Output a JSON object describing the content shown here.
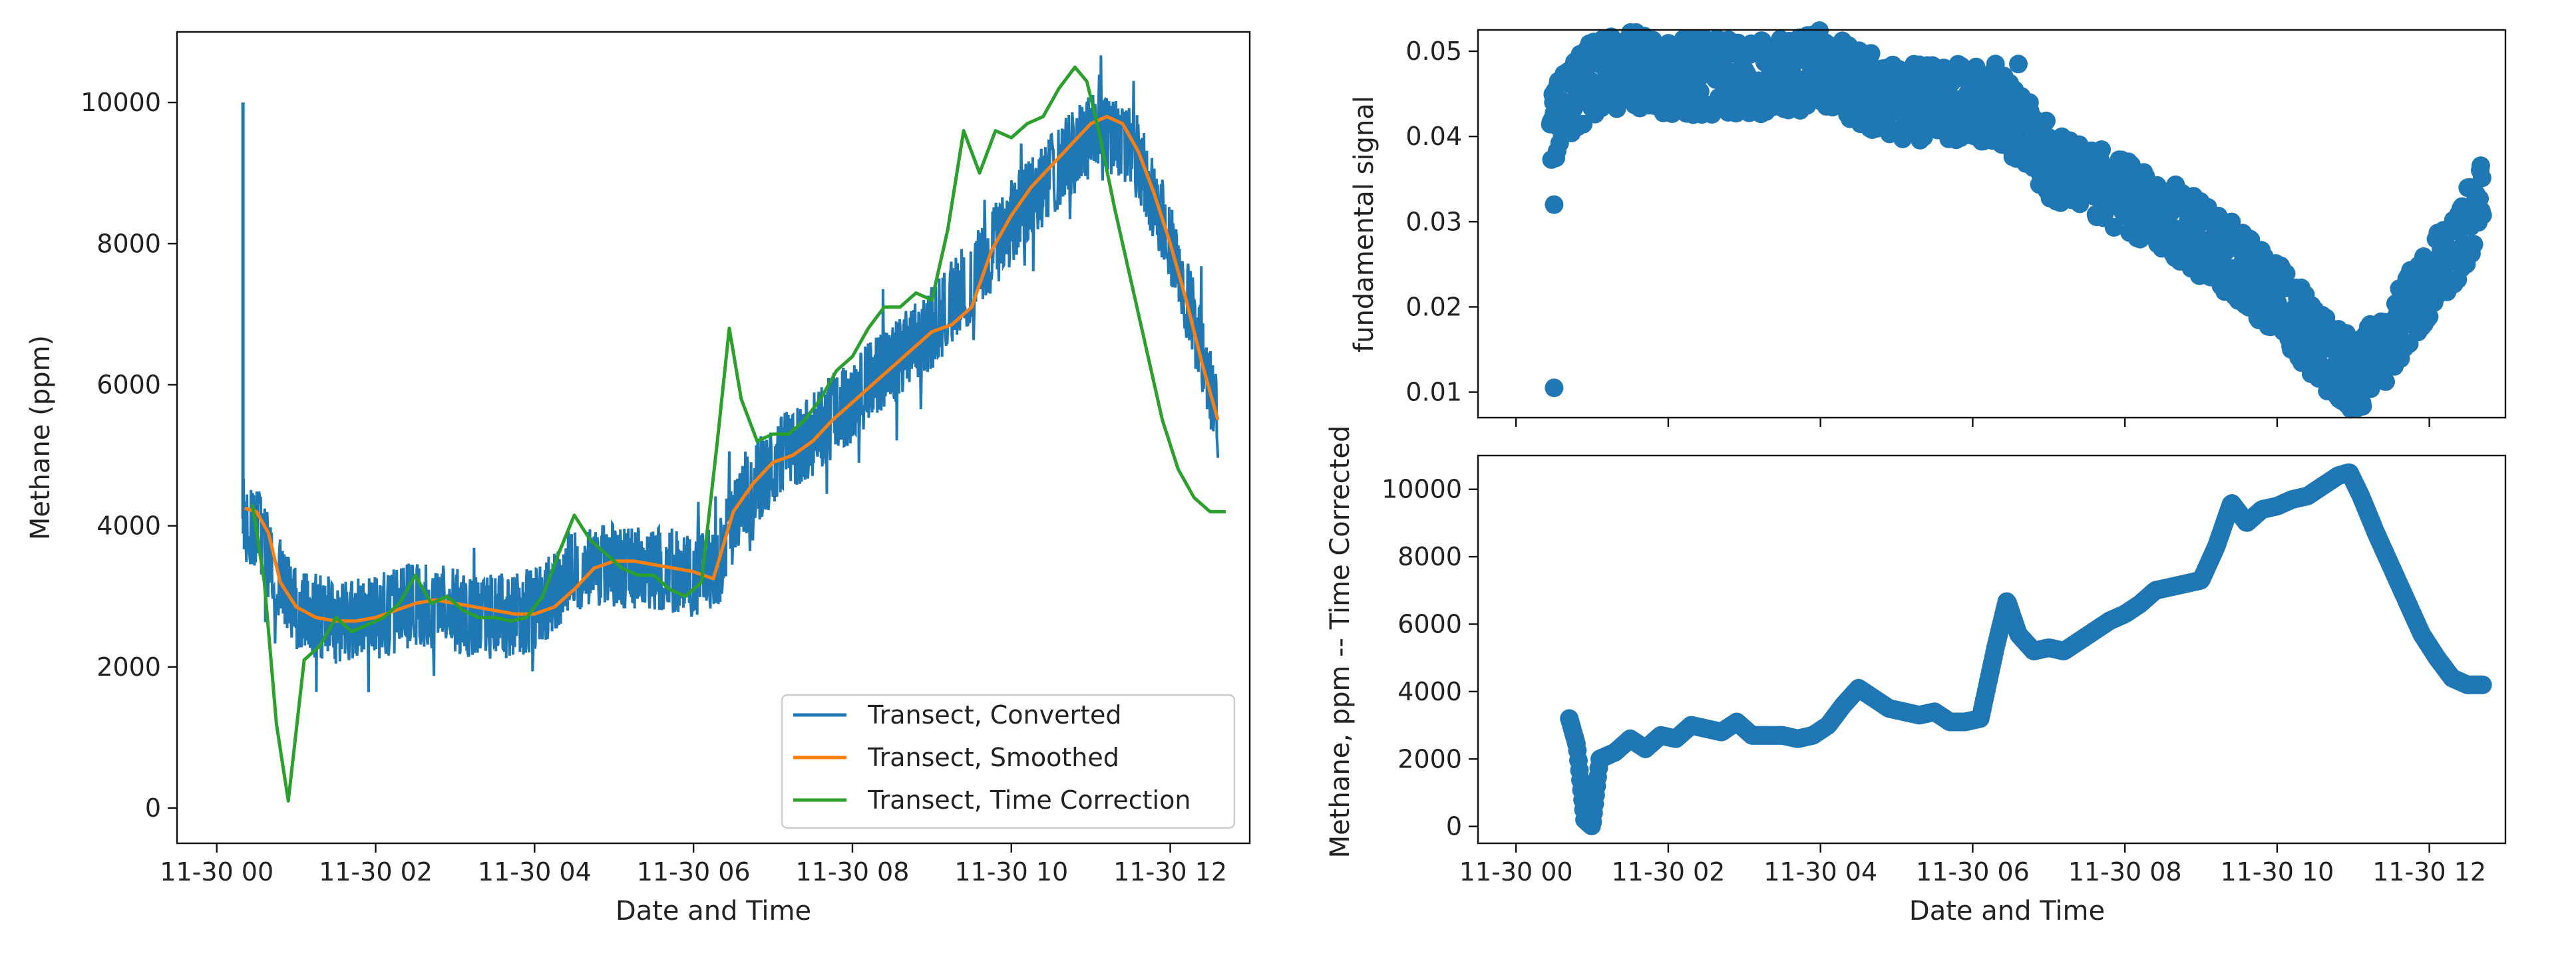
{
  "chart_data": [
    {
      "type": "line",
      "xlabel": "Date and Time",
      "ylabel": "Methane (ppm)",
      "xlim": [
        -0.5,
        13.0
      ],
      "ylim": [
        -500,
        11000
      ],
      "xticks": [
        0,
        2,
        4,
        6,
        8,
        10,
        12
      ],
      "xtick_labels": [
        "11-30 00",
        "11-30 02",
        "11-30 04",
        "11-30 06",
        "11-30 08",
        "11-30 10",
        "11-30 12"
      ],
      "yticks": [
        0,
        2000,
        4000,
        6000,
        8000,
        10000
      ],
      "ytick_labels": [
        "0",
        "2000",
        "4000",
        "6000",
        "8000",
        "10000"
      ],
      "legend": {
        "placement": "lower-right",
        "entries": [
          "Transect, Converted",
          "Transect, Smoothed",
          "Transect, Time Correction"
        ]
      },
      "series": [
        {
          "name": "Transect, Converted",
          "color": "#1f77b4",
          "band_noise": 450,
          "spike": {
            "x": 0.33,
            "y": 10000
          },
          "x": [
            0.33,
            0.5,
            0.75,
            1.0,
            1.5,
            2.0,
            2.5,
            3.0,
            3.5,
            4.0,
            4.5,
            5.0,
            5.5,
            6.0,
            6.3,
            6.6,
            7.0,
            7.5,
            8.0,
            8.5,
            9.0,
            9.5,
            10.0,
            10.5,
            11.0,
            11.3,
            11.6,
            12.0,
            12.4,
            12.6
          ],
          "y": [
            4100,
            4000,
            3300,
            2800,
            2650,
            2700,
            2900,
            2800,
            2700,
            2800,
            3400,
            3450,
            3400,
            3300,
            3400,
            4400,
            4900,
            5300,
            5800,
            6300,
            6800,
            7500,
            8300,
            9000,
            9500,
            9500,
            9200,
            8000,
            6500,
            5500
          ]
        },
        {
          "name": "Transect, Smoothed",
          "color": "#ff7f0e",
          "x": [
            0.35,
            0.5,
            0.65,
            0.8,
            1.0,
            1.25,
            1.5,
            1.75,
            2.0,
            2.25,
            2.5,
            2.75,
            3.0,
            3.25,
            3.5,
            3.75,
            4.0,
            4.25,
            4.5,
            4.75,
            5.0,
            5.25,
            5.5,
            5.75,
            6.0,
            6.25,
            6.5,
            6.75,
            7.0,
            7.25,
            7.5,
            7.75,
            8.0,
            8.25,
            8.5,
            8.75,
            9.0,
            9.25,
            9.5,
            9.75,
            10.0,
            10.25,
            10.5,
            10.75,
            11.0,
            11.2,
            11.4,
            11.6,
            11.8,
            12.0,
            12.2,
            12.4,
            12.6
          ],
          "y": [
            4250,
            4200,
            3900,
            3200,
            2850,
            2700,
            2650,
            2650,
            2700,
            2800,
            2900,
            2950,
            2900,
            2850,
            2800,
            2750,
            2750,
            2850,
            3100,
            3400,
            3500,
            3500,
            3450,
            3400,
            3350,
            3250,
            4200,
            4600,
            4900,
            5000,
            5200,
            5500,
            5750,
            6000,
            6250,
            6500,
            6750,
            6850,
            7100,
            7900,
            8400,
            8800,
            9100,
            9400,
            9700,
            9800,
            9700,
            9300,
            8700,
            8000,
            7200,
            6300,
            5500
          ]
        },
        {
          "name": "Transect, Time Correction",
          "color": "#2ca02c",
          "x": [
            0.45,
            0.6,
            0.75,
            0.9,
            1.1,
            1.3,
            1.5,
            1.7,
            1.9,
            2.1,
            2.3,
            2.5,
            2.7,
            2.9,
            3.1,
            3.3,
            3.5,
            3.7,
            3.9,
            4.1,
            4.3,
            4.5,
            4.7,
            4.9,
            5.1,
            5.3,
            5.5,
            5.7,
            5.9,
            6.1,
            6.3,
            6.45,
            6.6,
            6.8,
            7.0,
            7.2,
            7.4,
            7.6,
            7.8,
            8.0,
            8.2,
            8.4,
            8.6,
            8.8,
            9.0,
            9.2,
            9.4,
            9.6,
            9.8,
            10.0,
            10.2,
            10.4,
            10.6,
            10.8,
            10.95,
            11.1,
            11.3,
            11.5,
            11.7,
            11.9,
            12.1,
            12.3,
            12.5,
            12.7
          ],
          "y": [
            4300,
            3200,
            1200,
            100,
            2100,
            2300,
            2700,
            2500,
            2600,
            2700,
            2900,
            3300,
            2900,
            3000,
            2800,
            2700,
            2700,
            2650,
            2700,
            3000,
            3600,
            4150,
            3800,
            3600,
            3400,
            3300,
            3300,
            3100,
            3000,
            3200,
            5200,
            6800,
            5800,
            5200,
            5300,
            5300,
            5500,
            5800,
            6200,
            6400,
            6800,
            7100,
            7100,
            7300,
            7200,
            8200,
            9600,
            9000,
            9600,
            9500,
            9700,
            9800,
            10200,
            10500,
            10300,
            9600,
            8500,
            7500,
            6500,
            5500,
            4800,
            4400,
            4200,
            4200
          ]
        }
      ]
    },
    {
      "type": "scatter",
      "xlabel": "",
      "ylabel": "fundamental signal",
      "xlim": [
        -0.5,
        13.0
      ],
      "ylim": [
        0.007,
        0.0525
      ],
      "xticks": [
        0,
        2,
        4,
        6,
        8,
        10,
        12
      ],
      "xtick_labels": [],
      "yticks": [
        0.01,
        0.02,
        0.03,
        0.04,
        0.05
      ],
      "ytick_labels": [
        "0.01",
        "0.02",
        "0.03",
        "0.04",
        "0.05"
      ],
      "series": [
        {
          "color": "#1f77b4",
          "band_noise": 0.0045,
          "x": [
            0.45,
            0.6,
            0.8,
            1.0,
            1.5,
            2.0,
            2.5,
            3.0,
            3.5,
            4.0,
            4.5,
            5.0,
            5.5,
            6.0,
            6.4,
            7.0,
            7.5,
            8.0,
            8.5,
            9.0,
            9.5,
            10.0,
            10.3,
            10.6,
            10.8,
            11.0,
            11.3,
            11.6,
            12.0,
            12.4,
            12.7
          ],
          "y": [
            0.041,
            0.043,
            0.045,
            0.047,
            0.048,
            0.047,
            0.047,
            0.047,
            0.047,
            0.048,
            0.046,
            0.044,
            0.044,
            0.044,
            0.043,
            0.037,
            0.035,
            0.033,
            0.031,
            0.028,
            0.025,
            0.021,
            0.018,
            0.015,
            0.013,
            0.012,
            0.014,
            0.018,
            0.023,
            0.028,
            0.033
          ],
          "outliers": [
            {
              "x": 0.5,
              "y": 0.0105
            },
            {
              "x": 0.5,
              "y": 0.032
            },
            {
              "x": 6.3,
              "y": 0.0485
            },
            {
              "x": 6.6,
              "y": 0.0485
            }
          ]
        }
      ]
    },
    {
      "type": "scatter",
      "xlabel": "Date and Time",
      "ylabel": "Methane, ppm -- Time Corrected",
      "xlim": [
        -0.5,
        13.0
      ],
      "ylim": [
        -500,
        11000
      ],
      "xticks": [
        0,
        2,
        4,
        6,
        8,
        10,
        12
      ],
      "xtick_labels": [
        "11-30 00",
        "11-30 02",
        "11-30 04",
        "11-30 06",
        "11-30 08",
        "11-30 10",
        "11-30 12"
      ],
      "yticks": [
        0,
        2000,
        4000,
        6000,
        8000,
        10000
      ],
      "ytick_labels": [
        "0",
        "2000",
        "4000",
        "6000",
        "8000",
        "10000"
      ],
      "series": [
        {
          "color": "#1f77b4",
          "x": [
            0.7,
            0.8,
            0.9,
            1.0,
            1.1,
            1.3,
            1.5,
            1.7,
            1.9,
            2.1,
            2.3,
            2.5,
            2.7,
            2.9,
            3.1,
            3.3,
            3.5,
            3.7,
            3.9,
            4.1,
            4.3,
            4.5,
            4.7,
            4.9,
            5.1,
            5.3,
            5.5,
            5.7,
            5.9,
            6.1,
            6.3,
            6.45,
            6.6,
            6.8,
            7.0,
            7.2,
            7.4,
            7.6,
            7.8,
            8.0,
            8.2,
            8.4,
            8.6,
            8.8,
            9.0,
            9.2,
            9.4,
            9.6,
            9.8,
            10.0,
            10.2,
            10.4,
            10.6,
            10.8,
            10.95,
            11.1,
            11.3,
            11.5,
            11.7,
            11.9,
            12.1,
            12.3,
            12.5,
            12.7
          ],
          "y": [
            3200,
            2400,
            200,
            0,
            2000,
            2200,
            2600,
            2300,
            2700,
            2600,
            3000,
            2900,
            2800,
            3100,
            2700,
            2700,
            2700,
            2600,
            2700,
            3000,
            3600,
            4100,
            3800,
            3500,
            3400,
            3300,
            3400,
            3100,
            3100,
            3200,
            5300,
            6700,
            5700,
            5200,
            5300,
            5200,
            5500,
            5800,
            6100,
            6300,
            6600,
            7000,
            7100,
            7200,
            7300,
            8300,
            9600,
            9000,
            9400,
            9500,
            9700,
            9800,
            10100,
            10400,
            10500,
            9800,
            8700,
            7700,
            6700,
            5700,
            5000,
            4400,
            4200,
            4200
          ]
        }
      ]
    }
  ]
}
